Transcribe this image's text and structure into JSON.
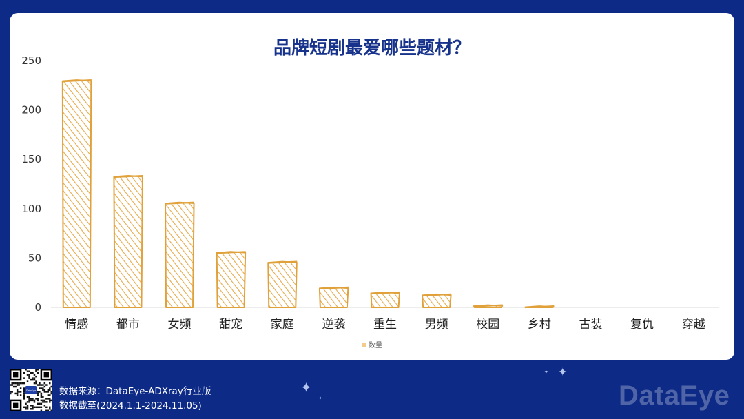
{
  "chart_data": {
    "type": "bar",
    "title": "品牌短剧最爱哪些题材？",
    "categories": [
      "情感",
      "都市",
      "女频",
      "甜宠",
      "家庭",
      "逆袭",
      "重生",
      "男频",
      "校园",
      "乡村",
      "古装",
      "复仇",
      "穿越"
    ],
    "series": [
      {
        "name": "数量",
        "values": [
          230,
          133,
          106,
          56,
          46,
          20,
          15,
          13,
          2,
          1,
          0,
          0,
          0
        ]
      }
    ],
    "ylim": [
      0,
      250
    ],
    "yticks": [
      0,
      50,
      100,
      150,
      200,
      250
    ],
    "grid": false,
    "legend": "bottom-center",
    "colors": {
      "bar_stroke": "#e0a13a",
      "bar_hatch": "#e6a94a",
      "legend_swatch": "#f2cc8a",
      "axis": "#d9d9d9"
    }
  },
  "footer": {
    "source_line": "数据来源：DataEye-ADXray行业版",
    "date_line": "数据截至(2024.1.1-2024.11.05)",
    "watermark": "DataEye",
    "qr_label": "DataEye"
  }
}
